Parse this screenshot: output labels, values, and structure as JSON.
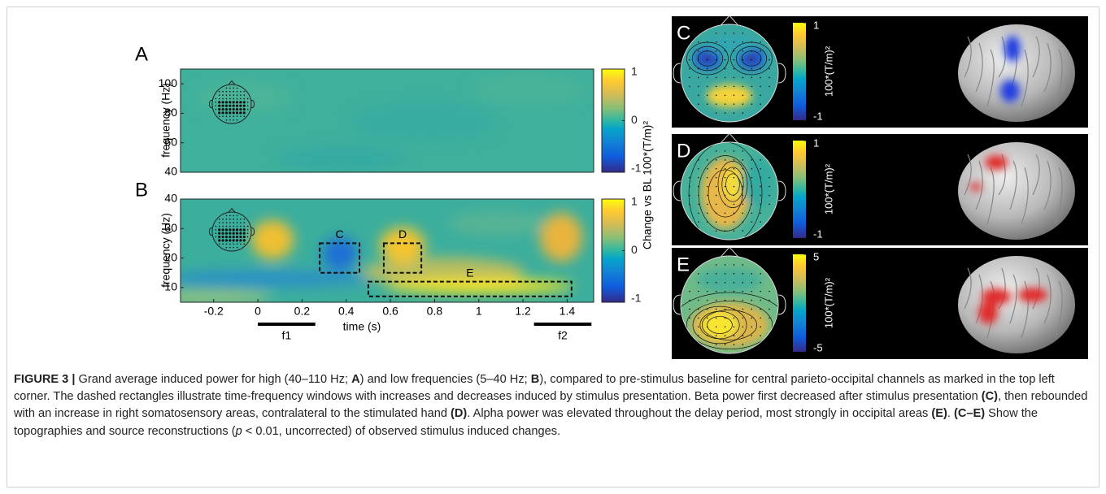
{
  "figure": {
    "panel_a": {
      "label": "A",
      "ylabel": "frequency (Hz)",
      "ylim": [
        40,
        110
      ],
      "yticks": [
        40,
        60,
        80,
        100
      ],
      "colorbar": {
        "lim": [
          -1,
          1
        ],
        "ticks": [
          -1,
          0,
          1
        ]
      }
    },
    "panel_b": {
      "label": "B",
      "ylabel": "frequency (Hz)",
      "xlabel": "time (s)",
      "xlim": [
        -0.35,
        1.52
      ],
      "ylim": [
        5,
        40
      ],
      "xticks": [
        -0.2,
        0,
        0.2,
        0.4,
        0.6,
        0.8,
        1,
        1.2,
        1.4
      ],
      "yticks": [
        10,
        20,
        30,
        40
      ],
      "colorbar": {
        "lim": [
          -1,
          1
        ],
        "ticks": [
          -1,
          0,
          1
        ]
      },
      "windows": [
        {
          "label": "C",
          "x": [
            0.28,
            0.46
          ],
          "y": [
            15,
            25
          ]
        },
        {
          "label": "D",
          "x": [
            0.57,
            0.74
          ],
          "y": [
            15,
            25
          ]
        },
        {
          "label": "E",
          "x": [
            0.5,
            1.42
          ],
          "y": [
            7,
            12
          ]
        }
      ],
      "stimuli": [
        {
          "label": "f1",
          "x": [
            0,
            0.26
          ]
        },
        {
          "label": "f2",
          "x": [
            1.25,
            1.51
          ]
        }
      ]
    },
    "colorbar_label": "Change vs BL 100*(T/m)²",
    "topographies": [
      {
        "label": "C",
        "unit": "100*(T/m)²",
        "colorbar": {
          "lim": [
            -1,
            1
          ],
          "ticks": [
            -1,
            1
          ]
        }
      },
      {
        "label": "D",
        "unit": "100*(T/m)²",
        "colorbar": {
          "lim": [
            -1,
            1
          ],
          "ticks": [
            -1,
            1
          ]
        }
      },
      {
        "label": "E",
        "unit": "100*(T/m)²",
        "colorbar": {
          "lim": [
            -5,
            5
          ],
          "ticks": [
            -5,
            5
          ]
        }
      }
    ]
  },
  "caption": {
    "runs": [
      "FIGURE 3 |",
      " Grand average induced power for high (40–110 Hz; ",
      "A",
      ") and low frequencies (5–40 Hz; ",
      "B",
      "), compared to pre-stimulus baseline for central parieto-occipital channels as marked in the top left corner. The dashed rectangles illustrate time-frequency windows with increases and decreases induced by stimulus presentation. Beta power first decreased after stimulus presentation ",
      "(C)",
      ", then rebounded with an increase in right somatosensory areas, contralateral to the stimulated hand ",
      "(D)",
      ". Alpha power was elevated throughout the delay period, most strongly in occipital areas ",
      "(E)",
      ". ",
      "(C–E)",
      " Show the topographies and source reconstructions (",
      "p",
      " < 0.01, uncorrected) of observed stimulus induced changes."
    ]
  }
}
